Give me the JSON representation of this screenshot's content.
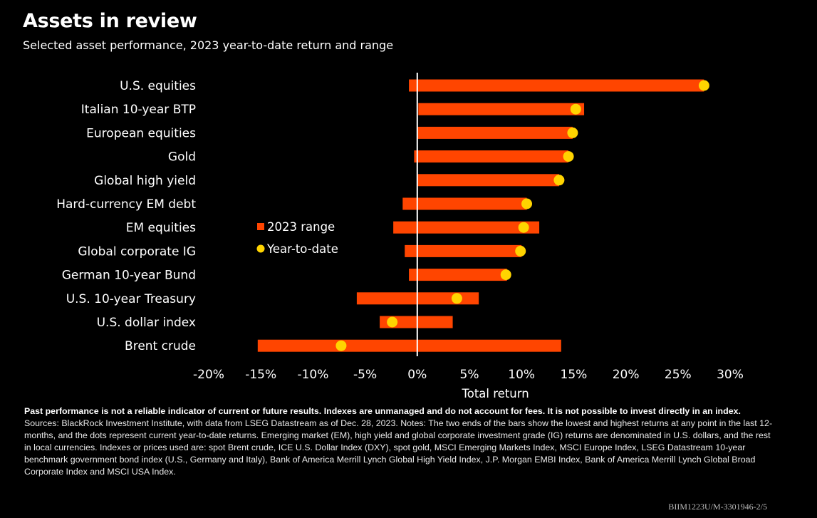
{
  "title": "Assets in review",
  "subtitle": "Selected asset performance, 2023 year-to-date return and range",
  "colors": {
    "background": "#000000",
    "range_bar": "#ff4500",
    "ytd_dot": "#ffd400",
    "text": "#ffffff"
  },
  "chart_data": {
    "type": "bar",
    "orientation": "horizontal",
    "categories": [
      "U.S. equities",
      "Italian 10-year BTP",
      "European equities",
      "Gold",
      "Global high yield",
      "Hard-currency EM debt",
      "EM equities",
      "Global corporate IG",
      "German 10-year Bund",
      "U.S. 10-year Treasury",
      "U.S. dollar index",
      "Brent crude"
    ],
    "series": [
      {
        "name": "2023 range",
        "type": "range",
        "low": [
          -0.8,
          0.1,
          0.0,
          -0.3,
          0.0,
          -1.4,
          -2.3,
          -1.2,
          -0.8,
          -5.8,
          -3.6,
          -15.3
        ],
        "high": [
          27.5,
          16.0,
          14.9,
          14.5,
          13.6,
          10.5,
          11.7,
          10.0,
          8.6,
          5.9,
          3.4,
          13.8
        ]
      },
      {
        "name": "Year-to-date",
        "type": "dot",
        "values": [
          27.5,
          15.2,
          14.9,
          14.5,
          13.6,
          10.5,
          10.2,
          9.9,
          8.5,
          3.8,
          -2.4,
          -7.3
        ]
      }
    ],
    "legend": [
      "2023 range",
      "Year-to-date"
    ],
    "legend_placement": "inside-left",
    "xlabel": "Total return",
    "xlim": [
      -20,
      30
    ],
    "xticks": [
      -20,
      -15,
      -10,
      -5,
      0,
      5,
      10,
      15,
      20,
      25,
      30
    ],
    "xtick_labels": [
      "-20%",
      "-15%",
      "-10%",
      "-5%",
      "0%",
      "5%",
      "10%",
      "15%",
      "20%",
      "25%",
      "30%"
    ],
    "grid": false
  },
  "notes": {
    "disclaimer": "Past performance is not a reliable indicator of current or future results. Indexes are unmanaged and do not account for fees. It is not possible to invest directly in an index.",
    "sources": "Sources: BlackRock Investment Institute, with data from LSEG Datastream as of Dec. 28, 2023. Notes: The two ends of the bars show the lowest and highest returns at any point in the last 12-months, and the dots represent current year-to-date returns. Emerging market (EM), high yield and global corporate investment grade (IG) returns are denominated in U.S. dollars, and the rest in local currencies. Indexes or prices used are: spot Brent crude, ICE U.S. Dollar Index (DXY), spot gold, MSCI Emerging Markets Index, MSCI Europe Index, LSEG Datastream 10-year benchmark government bond index (U.S., Germany and Italy), Bank of America Merrill Lynch Global High Yield Index, J.P. Morgan EMBI Index, Bank of America Merrill Lynch Global Broad Corporate Index and MSCI USA Index."
  },
  "footer_code": "BIIM1223U/M-3301946-2/5"
}
